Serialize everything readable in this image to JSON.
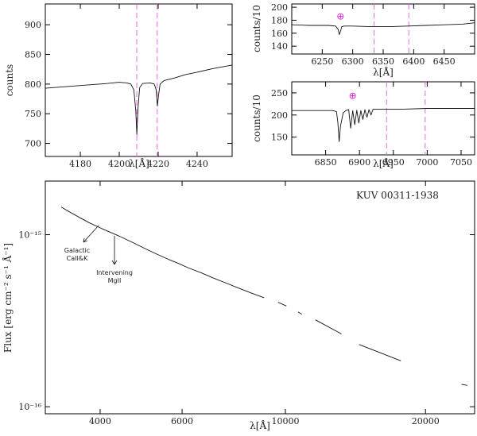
{
  "chart_data": [
    {
      "type": "line",
      "id": "panel_cak",
      "xlabel": "λ[Å]",
      "ylabel": "counts",
      "xlim": [
        4162,
        4258
      ],
      "ylim": [
        678,
        935
      ],
      "xticks": [
        4180,
        4200,
        4220,
        4240
      ],
      "yticks": [
        700,
        750,
        800,
        850,
        900
      ],
      "marker_lines": [
        4209,
        4219.5
      ],
      "series": [
        {
          "x": [
            4162,
            4170,
            4178,
            4186,
            4194,
            4200,
            4204,
            4206,
            4207.5,
            4208.5,
            4209,
            4209.6,
            4210.5,
            4212,
            4216,
            4218,
            4219,
            4219.6,
            4220.2,
            4221,
            4223,
            4228,
            4234,
            4240,
            4248,
            4258
          ],
          "y": [
            793,
            795,
            797,
            799,
            801,
            803,
            802,
            800,
            790,
            755,
            715,
            758,
            794,
            801,
            802,
            800,
            790,
            763,
            782,
            800,
            806,
            810,
            816,
            820,
            826,
            832
          ]
        }
      ]
    },
    {
      "type": "line",
      "id": "panel_telluric_b",
      "xlabel": "λ[Å]",
      "ylabel": "counts/10",
      "xlim": [
        6200,
        6500
      ],
      "ylim": [
        128,
        205
      ],
      "xticks": [
        6250,
        6300,
        6350,
        6400,
        6450
      ],
      "yticks": [
        140,
        160,
        180,
        200
      ],
      "marker_lines": [
        6335,
        6392
      ],
      "annotations": [
        {
          "text": "⊕",
          "x": 6280,
          "y": 186
        }
      ],
      "series": [
        {
          "x": [
            6200,
            6230,
            6260,
            6272,
            6276,
            6278,
            6280,
            6282,
            6286,
            6300,
            6330,
            6360,
            6390,
            6420,
            6450,
            6480,
            6500
          ],
          "y": [
            173,
            172,
            172,
            171,
            166,
            158,
            163,
            170,
            171,
            171,
            170,
            170,
            171,
            172,
            173,
            174,
            176
          ]
        }
      ]
    },
    {
      "type": "line",
      "id": "panel_telluric_a",
      "xlabel": "λ[Å]",
      "ylabel": "counts/10",
      "xlim": [
        6800,
        7070
      ],
      "ylim": [
        110,
        275
      ],
      "xticks": [
        6850,
        6900,
        6950,
        7000,
        7050
      ],
      "yticks": [
        150,
        200,
        250
      ],
      "marker_lines": [
        6940,
        6997
      ],
      "annotations": [
        {
          "text": "⊕",
          "x": 6890,
          "y": 244
        }
      ],
      "series": [
        {
          "x": [
            6800,
            6840,
            6860,
            6866,
            6868,
            6870,
            6872,
            6876,
            6880,
            6884,
            6887,
            6890,
            6893,
            6896,
            6899,
            6902,
            6905,
            6908,
            6911,
            6914,
            6917,
            6920,
            6930,
            6960,
            7000,
            7040,
            7070
          ],
          "y": [
            210,
            210,
            210,
            208,
            185,
            140,
            175,
            205,
            210,
            212,
            170,
            210,
            178,
            211,
            182,
            210,
            190,
            212,
            195,
            212,
            200,
            213,
            213,
            213,
            215,
            215,
            215
          ]
        }
      ]
    },
    {
      "type": "line",
      "id": "panel_main",
      "title": "KUV 00311-1938",
      "xlabel": "λ[Å]",
      "ylabel": "Flux [erg cm⁻² s⁻¹ Å⁻¹]",
      "xscale": "log",
      "yscale": "log",
      "xlim": [
        3050,
        25500
      ],
      "ylim": [
        9.1e-17,
        2.05e-15
      ],
      "xticks": [
        4000,
        6000,
        10000,
        20000
      ],
      "xtick_labels": [
        "4000",
        "6000",
        "10000",
        "20000"
      ],
      "yticks": [
        1e-15,
        1e-16
      ],
      "ytick_labels": [
        "10⁻¹⁵",
        "10⁻¹⁶"
      ],
      "annotations": [
        {
          "text": "Galactic",
          "arrow_to_x": 3934
        },
        {
          "text": "CaII&K",
          "arrow_to_x": 3934
        },
        {
          "text": "Intervening",
          "arrow_to_x": 4214
        },
        {
          "text": "MgII",
          "arrow_to_x": 4214
        }
      ],
      "series": [
        {
          "x": [
            3300,
            3400,
            3500,
            3650,
            3800,
            3934,
            4050,
            4214,
            4400,
            4700,
            5000,
            5300,
            5600,
            5900,
            6200,
            6600,
            7000,
            7500,
            8000,
            8500,
            9000
          ],
          "y": [
            1.45e-15,
            1.38e-15,
            1.32e-15,
            1.24e-15,
            1.17e-15,
            1.12e-15,
            1.08e-15,
            1.03e-15,
            9.8e-16,
            9e-16,
            8.3e-16,
            7.7e-16,
            7.2e-16,
            6.8e-16,
            6.4e-16,
            6e-16,
            5.6e-16,
            5.2e-16,
            4.85e-16,
            4.55e-16,
            4.3e-16
          ]
        },
        {
          "x": [
            9650,
            10050
          ],
          "y": [
            4.05e-16,
            3.85e-16
          ]
        },
        {
          "x": [
            10650,
            10850
          ],
          "y": [
            3.55e-16,
            3.45e-16
          ]
        },
        {
          "x": [
            11600,
            13200
          ],
          "y": [
            3.2e-16,
            2.65e-16
          ]
        },
        {
          "x": [
            14400,
            17700
          ],
          "y": [
            2.3e-16,
            1.85e-16
          ]
        },
        {
          "x": [
            23900,
            24600
          ],
          "y": [
            1.35e-16,
            1.33e-16
          ]
        }
      ]
    }
  ]
}
